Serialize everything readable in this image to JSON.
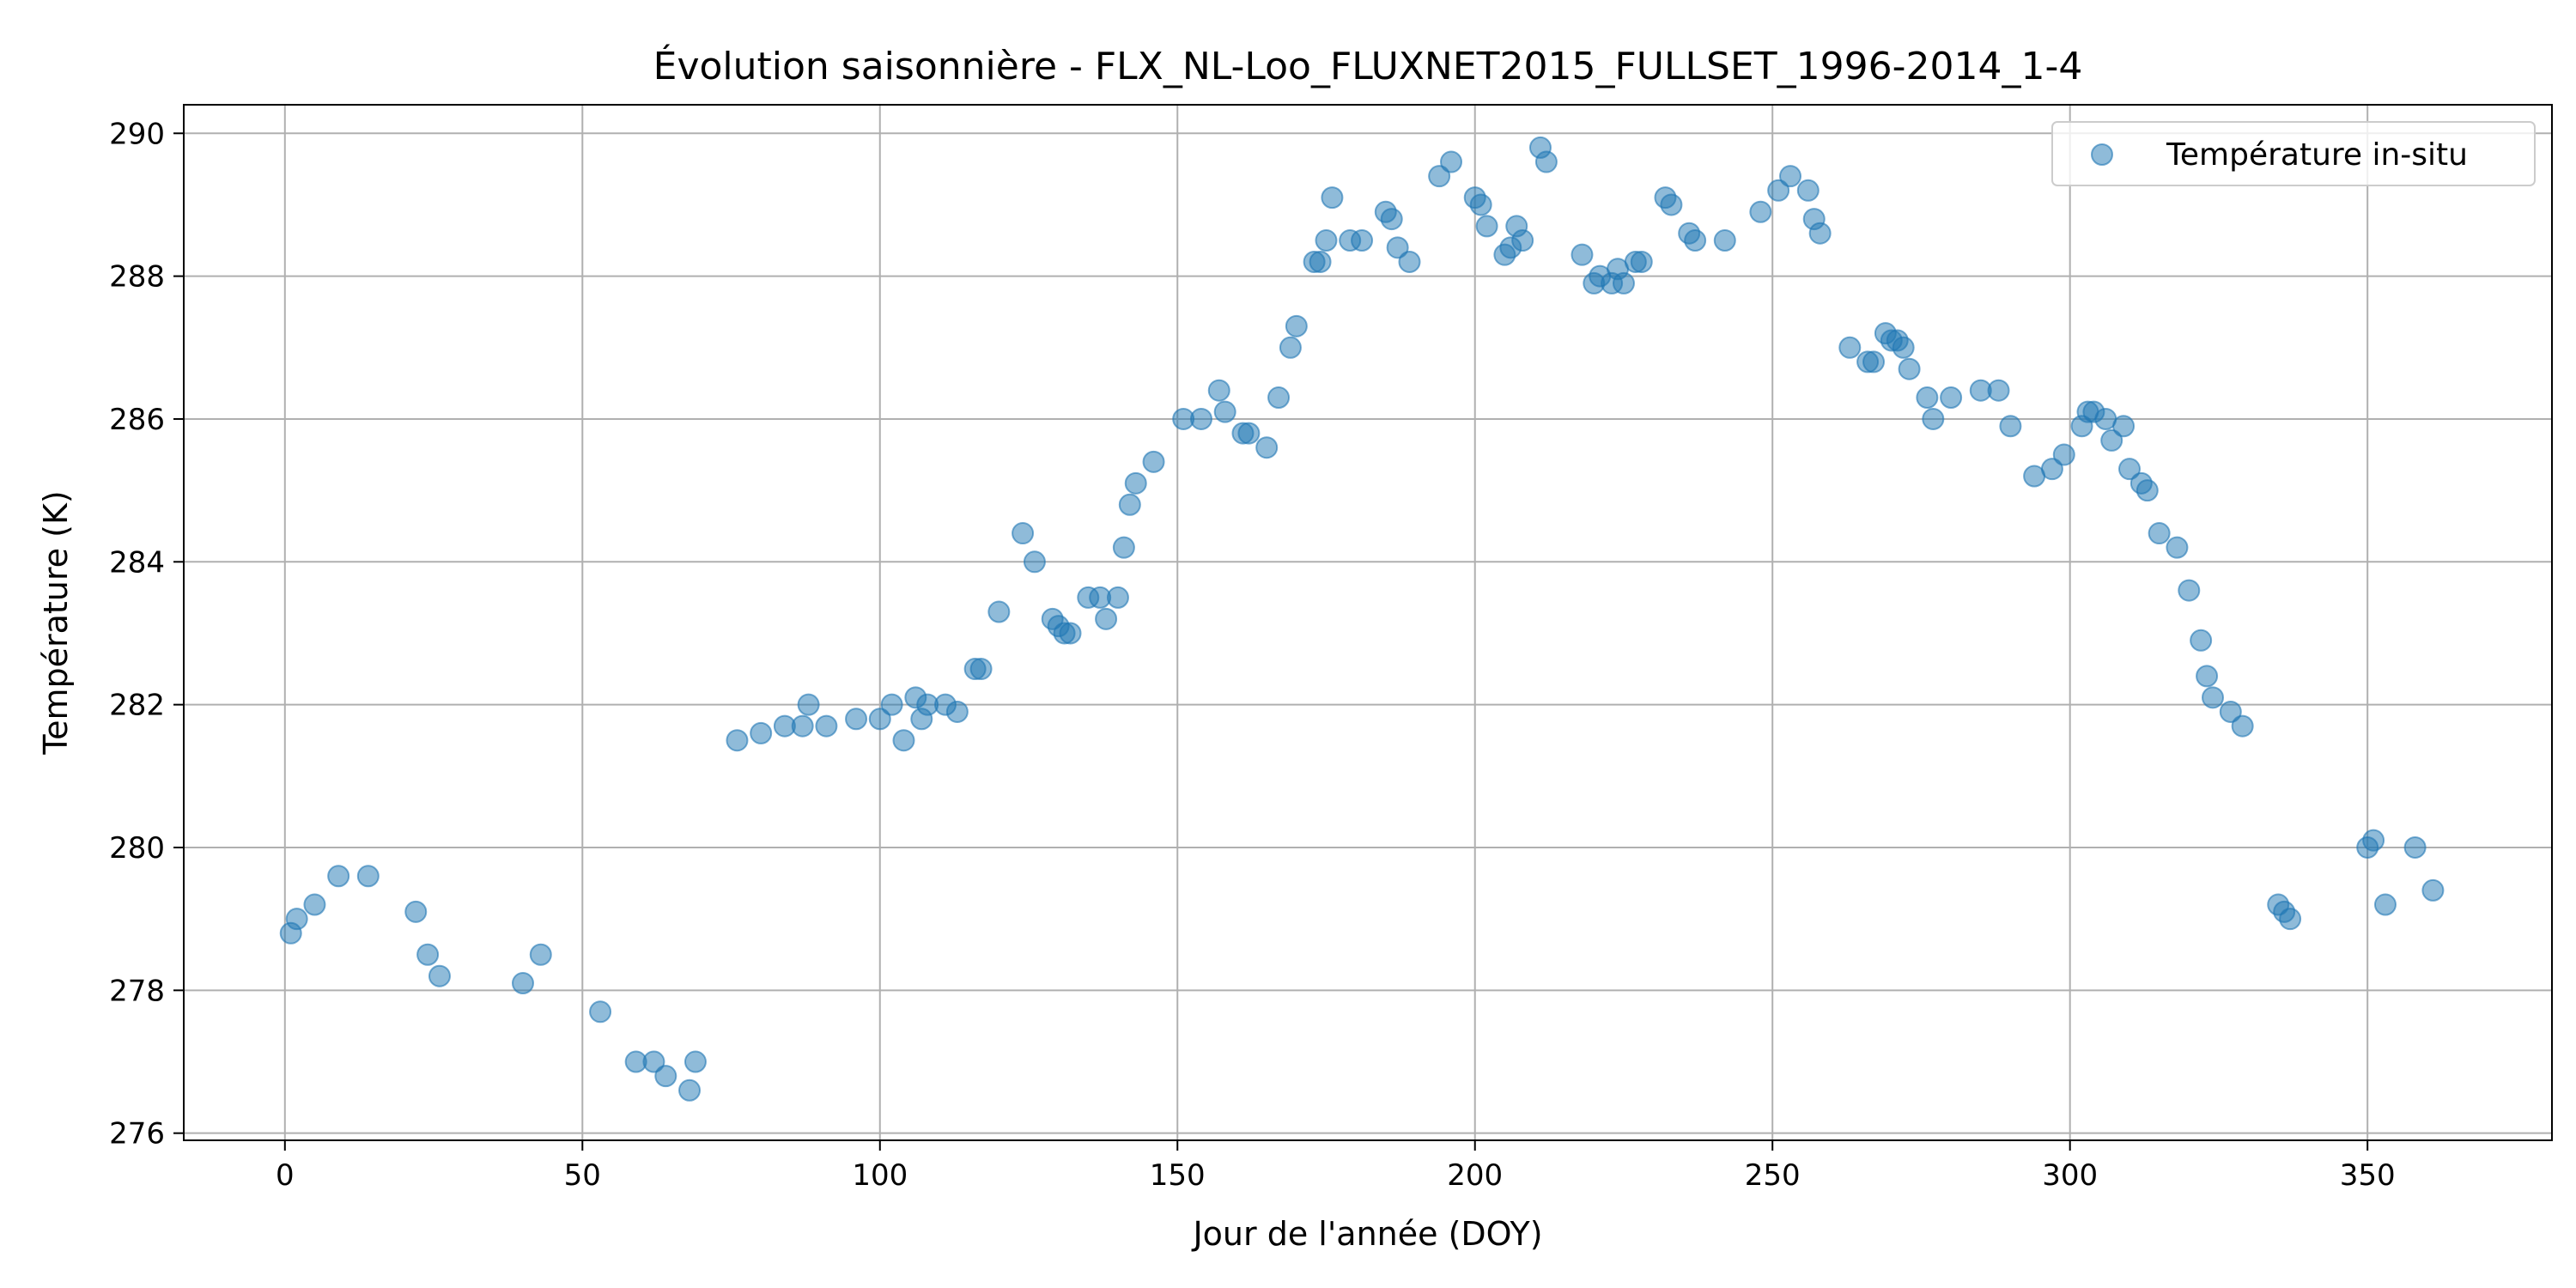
{
  "chart_data": {
    "type": "scatter",
    "title": "Évolution saisonnière - FLX_NL-Loo_FLUXNET2015_FULLSET_1996-2014_1-4",
    "xlabel": "Jour de l'année (DOY)",
    "ylabel": "Température (K)",
    "xlim": [
      -17,
      381
    ],
    "ylim": [
      275.9,
      290.4
    ],
    "xticks": [
      0,
      50,
      100,
      150,
      200,
      250,
      300,
      350
    ],
    "yticks": [
      276,
      278,
      280,
      282,
      284,
      286,
      288,
      290
    ],
    "grid": true,
    "legend_position": "top-right",
    "series": [
      {
        "name": "Température in-situ",
        "color": "#1f77b4",
        "x": [
          1,
          2,
          5,
          9,
          14,
          22,
          24,
          26,
          40,
          43,
          53,
          59,
          62,
          64,
          68,
          69,
          76,
          80,
          84,
          87,
          88,
          91,
          96,
          100,
          102,
          104,
          106,
          107,
          108,
          111,
          113,
          116,
          117,
          120,
          124,
          126,
          129,
          130,
          131,
          132,
          135,
          137,
          138,
          140,
          141,
          142,
          143,
          146,
          151,
          154,
          157,
          158,
          161,
          162,
          165,
          167,
          169,
          170,
          173,
          174,
          175,
          176,
          179,
          181,
          185,
          186,
          187,
          189,
          194,
          196,
          200,
          201,
          202,
          205,
          206,
          207,
          208,
          211,
          212,
          218,
          220,
          221,
          223,
          224,
          225,
          227,
          228,
          232,
          233,
          236,
          237,
          242,
          248,
          251,
          253,
          256,
          257,
          258,
          263,
          266,
          267,
          269,
          270,
          271,
          272,
          273,
          276,
          277,
          280,
          285,
          288,
          290,
          294,
          297,
          299,
          302,
          303,
          304,
          306,
          307,
          309,
          310,
          312,
          313,
          315,
          318,
          320,
          322,
          323,
          324,
          327,
          329,
          335,
          336,
          337,
          350,
          351,
          353,
          358,
          361
        ],
        "y": [
          278.8,
          279.0,
          279.2,
          279.6,
          279.6,
          279.1,
          278.5,
          278.2,
          278.1,
          278.5,
          277.7,
          277.0,
          277.0,
          276.8,
          276.6,
          277.0,
          281.5,
          281.6,
          281.7,
          281.7,
          282.0,
          281.7,
          281.8,
          281.8,
          282.0,
          281.5,
          282.1,
          281.8,
          282.0,
          282.0,
          281.9,
          282.5,
          282.5,
          283.3,
          284.4,
          284.0,
          283.2,
          283.1,
          283.0,
          283.0,
          283.5,
          283.5,
          283.2,
          283.5,
          284.2,
          284.8,
          285.1,
          285.4,
          286.0,
          286.0,
          286.4,
          286.1,
          285.8,
          285.8,
          285.6,
          286.3,
          287.0,
          287.3,
          288.2,
          288.2,
          288.5,
          289.1,
          288.5,
          288.5,
          288.9,
          288.8,
          288.4,
          288.2,
          289.4,
          289.6,
          289.1,
          289.0,
          288.7,
          288.3,
          288.4,
          288.7,
          288.5,
          289.8,
          289.6,
          288.3,
          287.9,
          288.0,
          287.9,
          288.1,
          287.9,
          288.2,
          288.2,
          289.1,
          289.0,
          288.6,
          288.5,
          288.5,
          288.9,
          289.2,
          289.4,
          289.2,
          288.8,
          288.6,
          287.0,
          286.8,
          286.8,
          287.2,
          287.1,
          287.1,
          287.0,
          286.7,
          286.3,
          286.0,
          286.3,
          286.4,
          286.4,
          285.9,
          285.2,
          285.3,
          285.5,
          285.9,
          286.1,
          286.1,
          286.0,
          285.7,
          285.9,
          285.3,
          285.1,
          285.0,
          284.4,
          284.2,
          283.6,
          282.9,
          282.4,
          282.1,
          281.9,
          281.7,
          279.2,
          279.1,
          279.0,
          280.0,
          280.1,
          279.2,
          280.0,
          279.4
        ]
      }
    ]
  }
}
